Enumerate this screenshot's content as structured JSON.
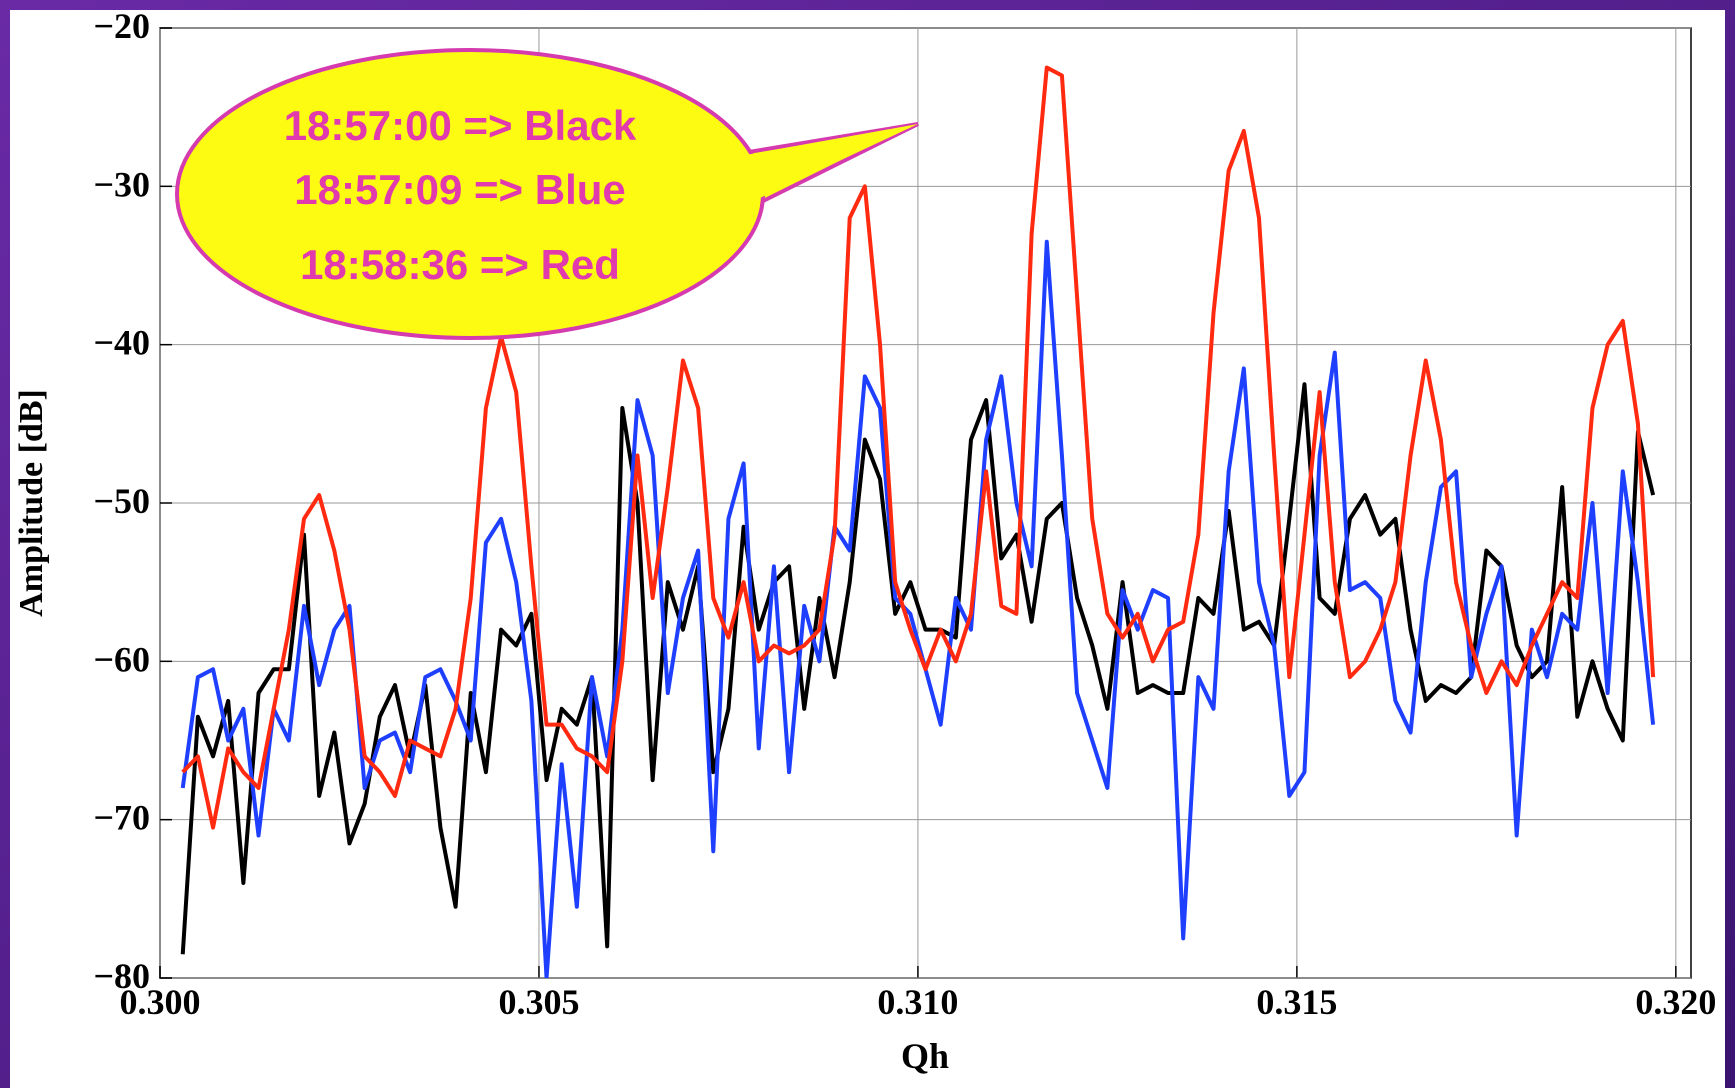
{
  "chart_data": {
    "type": "line",
    "xlabel": "Qh",
    "ylabel": "Amplitude [dB]",
    "annotations": [
      "18:57:00 => Black",
      "18:57:09 => Blue",
      "18:58:36 => Red"
    ],
    "xlim": [
      0.3,
      0.3202
    ],
    "ylim": [
      -80,
      -20
    ],
    "grid": true,
    "xticks": [
      {
        "value": 0.3,
        "label": "0.300"
      },
      {
        "value": 0.305,
        "label": "0.305"
      },
      {
        "value": 0.31,
        "label": "0.310"
      },
      {
        "value": 0.315,
        "label": "0.315"
      },
      {
        "value": 0.32,
        "label": "0.320"
      }
    ],
    "yticks": [
      {
        "value": -80,
        "label": "−80"
      },
      {
        "value": -70,
        "label": "−70"
      },
      {
        "value": -60,
        "label": "−60"
      },
      {
        "value": -50,
        "label": "−50"
      },
      {
        "value": -40,
        "label": "−40"
      },
      {
        "value": -30,
        "label": "−30"
      },
      {
        "value": -20,
        "label": "−20"
      }
    ],
    "x": [
      0.3003,
      0.3005,
      0.3007,
      0.3009,
      0.3011,
      0.3013,
      0.3015,
      0.3017,
      0.3019,
      0.3021,
      0.3023,
      0.3025,
      0.3027,
      0.3029,
      0.3031,
      0.3033,
      0.3035,
      0.3037,
      0.3039,
      0.3041,
      0.3043,
      0.3045,
      0.3047,
      0.3049,
      0.3051,
      0.3053,
      0.3055,
      0.3057,
      0.3059,
      0.3061,
      0.3063,
      0.3065,
      0.3067,
      0.3069,
      0.3071,
      0.3073,
      0.3075,
      0.3077,
      0.3079,
      0.3081,
      0.3083,
      0.3085,
      0.3087,
      0.3089,
      0.3091,
      0.3093,
      0.3095,
      0.3097,
      0.3099,
      0.3101,
      0.3103,
      0.3105,
      0.3107,
      0.3109,
      0.3111,
      0.3113,
      0.3115,
      0.3117,
      0.3119,
      0.3121,
      0.3123,
      0.3125,
      0.3127,
      0.3129,
      0.3131,
      0.3133,
      0.3135,
      0.3137,
      0.3139,
      0.3141,
      0.3143,
      0.3145,
      0.3147,
      0.3149,
      0.3151,
      0.3153,
      0.3155,
      0.3157,
      0.3159,
      0.3161,
      0.3163,
      0.3165,
      0.3167,
      0.3169,
      0.3171,
      0.3173,
      0.3175,
      0.3177,
      0.3179,
      0.3181,
      0.3183,
      0.3185,
      0.3187,
      0.3189,
      0.3191,
      0.3193,
      0.3195,
      0.3197
    ],
    "series": [
      {
        "color": "#000000",
        "values": [
          -78.5,
          -63.5,
          -66,
          -62.5,
          -74,
          -62,
          -60.5,
          -60.5,
          -52,
          -68.5,
          -64.5,
          -71.5,
          -69,
          -63.5,
          -61.5,
          -66,
          -61.5,
          -70.5,
          -75.5,
          -62,
          -67,
          -58,
          -59,
          -57,
          -67.5,
          -63,
          -64,
          -61,
          -78,
          -44,
          -50,
          -67.5,
          -55,
          -58,
          -54,
          -67,
          -63,
          -51.5,
          -58,
          -55,
          -54,
          -63,
          -56,
          -61,
          -55,
          -46,
          -48.5,
          -57,
          -55,
          -58,
          -58,
          -58.5,
          -46,
          -43.5,
          -53.5,
          -52,
          -57.5,
          -51,
          -50,
          -56,
          -59,
          -63,
          -55,
          -62,
          -61.5,
          -62,
          -62,
          -56,
          -57,
          -50.5,
          -58,
          -57.5,
          -59,
          -51,
          -42.5,
          -56,
          -57,
          -51,
          -49.5,
          -52,
          -51,
          -58,
          -62.5,
          -61.5,
          -62,
          -61,
          -53,
          -54,
          -59,
          -61,
          -60,
          -49,
          -63.5,
          -60,
          -63,
          -65,
          -45.5,
          -49.5
        ]
      },
      {
        "color": "#1f3fff",
        "values": [
          -68,
          -61,
          -60.5,
          -65,
          -63,
          -71,
          -63,
          -65,
          -56.5,
          -61.5,
          -58,
          -56.5,
          -68,
          -65,
          -64.5,
          -67,
          -61,
          -60.5,
          -62.5,
          -65,
          -52.5,
          -51,
          -55,
          -62.5,
          -80,
          -66.5,
          -75.5,
          -61,
          -66,
          -58,
          -43.5,
          -47,
          -62,
          -56,
          -53,
          -72,
          -51,
          -47.5,
          -65.5,
          -54,
          -67,
          -56.5,
          -60,
          -51.5,
          -53,
          -42,
          -44,
          -56,
          -57,
          -60.5,
          -64,
          -56,
          -58,
          -46,
          -42,
          -50,
          -54,
          -33.5,
          -47,
          -62,
          -65,
          -68,
          -55.5,
          -58,
          -55.5,
          -56,
          -77.5,
          -61,
          -63,
          -48,
          -41.5,
          -55,
          -59,
          -68.5,
          -67,
          -47,
          -40.5,
          -55.5,
          -55,
          -56,
          -62.5,
          -64.5,
          -55,
          -49,
          -48,
          -61,
          -57,
          -54,
          -71,
          -58,
          -61,
          -57,
          -58,
          -50,
          -62,
          -48,
          -55,
          -64
        ]
      },
      {
        "color": "#ff2a10",
        "values": [
          -67,
          -66,
          -70.5,
          -65.5,
          -67,
          -68,
          -63,
          -58,
          -51,
          -49.5,
          -53,
          -58,
          -66,
          -67,
          -68.5,
          -65,
          -65.5,
          -66,
          -63,
          -56,
          -44,
          -39.5,
          -43,
          -54,
          -64,
          -64,
          -65.5,
          -66,
          -67,
          -60,
          -47,
          -56,
          -49,
          -41,
          -44,
          -56,
          -58.5,
          -55,
          -60,
          -59,
          -59.5,
          -59,
          -58,
          -52,
          -32,
          -30,
          -40,
          -55,
          -58,
          -60.5,
          -58,
          -60,
          -57,
          -48,
          -56.5,
          -57,
          -33,
          -22.5,
          -23,
          -37,
          -51,
          -57,
          -58.5,
          -57,
          -60,
          -58,
          -57.5,
          -52,
          -38,
          -29,
          -26.5,
          -32,
          -47,
          -61,
          -52,
          -43,
          -55,
          -61,
          -60,
          -58,
          -55,
          -47,
          -41,
          -46,
          -55,
          -59,
          -62,
          -60,
          -61.5,
          -59,
          -57,
          -55,
          -56,
          -44,
          -40,
          -38.5,
          -45,
          -61
        ]
      }
    ]
  }
}
